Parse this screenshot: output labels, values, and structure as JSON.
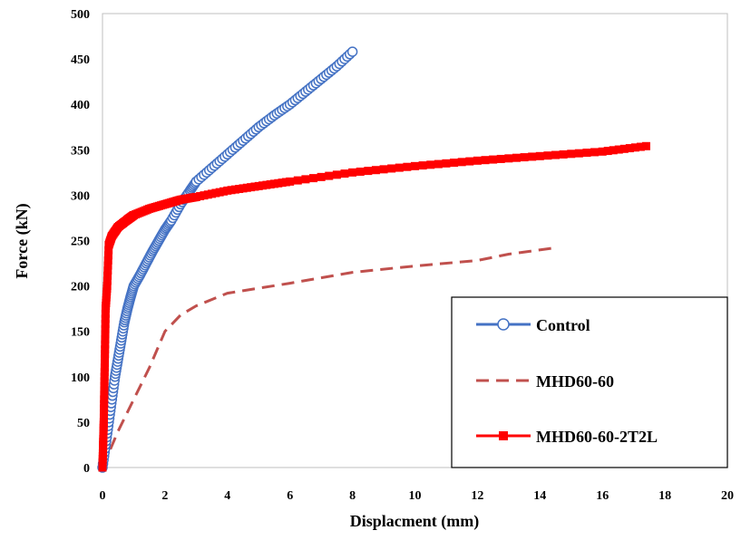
{
  "chart_data": {
    "type": "line",
    "title": "",
    "xlabel": "Displacment (mm)",
    "ylabel": "Force (kN)",
    "xlim": [
      0,
      20
    ],
    "ylim": [
      0,
      500
    ],
    "x_ticks": [
      0,
      2,
      4,
      6,
      8,
      10,
      12,
      14,
      16,
      18,
      20
    ],
    "y_ticks": [
      0,
      50,
      100,
      150,
      200,
      250,
      300,
      350,
      400,
      450,
      500
    ],
    "x_tick_labels": [
      "0",
      "2",
      "4",
      "6",
      "8",
      "10",
      "12",
      "14",
      "16",
      "18",
      "20"
    ],
    "y_tick_labels": [
      "0",
      "50",
      "100",
      "150",
      "200",
      "250",
      "300",
      "350",
      "400",
      "450",
      "500"
    ],
    "grid": false,
    "legend_position": "right-bottom",
    "series": [
      {
        "name": "Control",
        "style": "line-circle-markers",
        "color": "#4472C4",
        "x": [
          0,
          0.1,
          0.2,
          0.3,
          0.4,
          0.5,
          0.6,
          0.7,
          0.8,
          0.9,
          1.0,
          1.2,
          1.4,
          1.6,
          1.8,
          2.0,
          2.2,
          2.5,
          2.8,
          3.0,
          3.5,
          4.0,
          4.5,
          5.0,
          5.5,
          6.0,
          6.5,
          7.0,
          7.5,
          8.0
        ],
        "y": [
          0,
          25,
          50,
          75,
          100,
          120,
          140,
          160,
          175,
          188,
          200,
          212,
          225,
          238,
          250,
          262,
          272,
          290,
          305,
          315,
          330,
          345,
          360,
          375,
          388,
          400,
          414,
          428,
          442,
          458
        ]
      },
      {
        "name": "MHD60-60",
        "style": "dashed",
        "color": "#C0504D",
        "x": [
          0,
          0.5,
          1.0,
          1.5,
          2.0,
          2.5,
          3.0,
          4.0,
          6.0,
          8.0,
          10.0,
          12.0,
          13.0,
          14.5
        ],
        "y": [
          0,
          40,
          75,
          110,
          150,
          168,
          178,
          192,
          203,
          215,
          222,
          228,
          235,
          242
        ]
      },
      {
        "name": "MHD60-60-2T2L",
        "style": "line-square-markers",
        "color": "#FF0000",
        "x": [
          0,
          0.02,
          0.04,
          0.06,
          0.08,
          0.1,
          0.15,
          0.2,
          0.3,
          0.5,
          0.8,
          1.0,
          1.5,
          2.0,
          2.5,
          3.0,
          4.0,
          5.0,
          6.0,
          8.0,
          10.0,
          12.0,
          14.0,
          16.0,
          17.4
        ],
        "y": [
          0,
          25,
          50,
          90,
          130,
          175,
          200,
          245,
          255,
          265,
          273,
          278,
          285,
          290,
          295,
          298,
          305,
          310,
          315,
          325,
          332,
          338,
          343,
          348,
          354
        ]
      }
    ]
  }
}
